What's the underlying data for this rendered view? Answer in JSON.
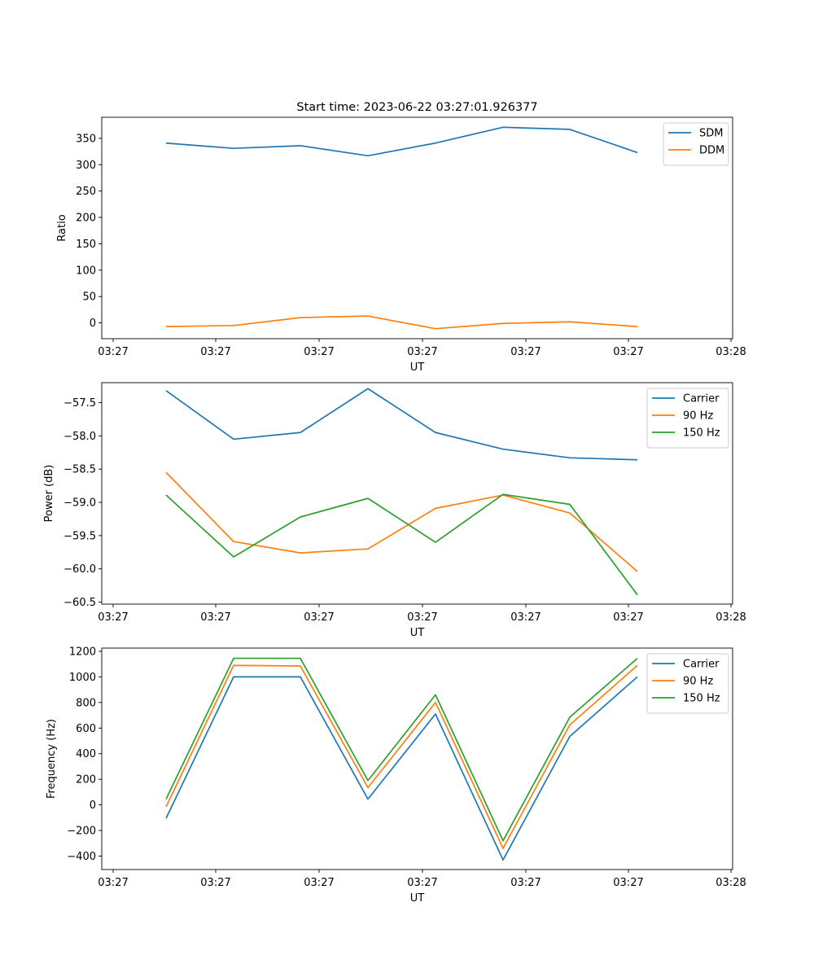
{
  "chart_data": [
    {
      "type": "line",
      "title": "Start time: 2023-06-22 03:27:01.926377",
      "xlabel": "UT",
      "ylabel": "Ratio",
      "xtick_labels": [
        "03:27",
        "03:27",
        "03:27",
        "03:27",
        "03:27",
        "03:27",
        "03:27",
        "03:28"
      ],
      "x_point_count": 8,
      "ylim": [
        -30,
        390
      ],
      "yticks": [
        0,
        50,
        100,
        150,
        200,
        250,
        300,
        350
      ],
      "ytick_labels": [
        "0",
        "50",
        "100",
        "150",
        "200",
        "250",
        "300",
        "350"
      ],
      "legend": "upper right",
      "series": [
        {
          "name": "SDM",
          "color": "#1f77b4",
          "values": [
            341,
            331,
            336,
            317,
            341,
            371,
            367,
            323
          ]
        },
        {
          "name": "DDM",
          "color": "#ff7f0e",
          "values": [
            -7,
            -5,
            10,
            13,
            -11,
            -1,
            2,
            -7
          ]
        }
      ]
    },
    {
      "type": "line",
      "title": "",
      "xlabel": "UT",
      "ylabel": "Power (dB)",
      "xtick_labels": [
        "03:27",
        "03:27",
        "03:27",
        "03:27",
        "03:27",
        "03:27",
        "03:27",
        "03:28"
      ],
      "x_point_count": 8,
      "ylim": [
        -60.53,
        -57.2
      ],
      "yticks": [
        -60.5,
        -60.0,
        -59.5,
        -59.0,
        -58.5,
        -58.0,
        -57.5
      ],
      "ytick_labels": [
        "−60.5",
        "−60.0",
        "−59.5",
        "−59.0",
        "−58.5",
        "−58.0",
        "−57.5"
      ],
      "legend": "upper right",
      "series": [
        {
          "name": "Carrier",
          "color": "#1f77b4",
          "values": [
            -57.32,
            -58.05,
            -57.95,
            -57.29,
            -57.95,
            -58.2,
            -58.33,
            -58.36
          ]
        },
        {
          "name": "90 Hz",
          "color": "#ff7f0e",
          "values": [
            -58.55,
            -59.59,
            -59.76,
            -59.7,
            -59.09,
            -58.89,
            -59.16,
            -60.04
          ]
        },
        {
          "name": "150 Hz",
          "color": "#2ca02c",
          "values": [
            -58.89,
            -59.82,
            -59.22,
            -58.94,
            -59.6,
            -58.88,
            -59.03,
            -60.39
          ]
        }
      ]
    },
    {
      "type": "line",
      "title": "",
      "xlabel": "UT",
      "ylabel": "Frequency (Hz)",
      "xtick_labels": [
        "03:27",
        "03:27",
        "03:27",
        "03:27",
        "03:27",
        "03:27",
        "03:27",
        "03:28"
      ],
      "x_point_count": 8,
      "ylim": [
        -505,
        1225
      ],
      "yticks": [
        -400,
        -200,
        0,
        200,
        400,
        600,
        800,
        1000,
        1200
      ],
      "ytick_labels": [
        "−400",
        "−200",
        "0",
        "200",
        "400",
        "600",
        "800",
        "1000",
        "1200"
      ],
      "legend": "upper right",
      "series": [
        {
          "name": "Carrier",
          "color": "#1f77b4",
          "values": [
            -105,
            1000,
            1000,
            45,
            710,
            -430,
            535,
            1000
          ]
        },
        {
          "name": "90 Hz",
          "color": "#ff7f0e",
          "values": [
            -15,
            1090,
            1085,
            135,
            800,
            -340,
            625,
            1090
          ]
        },
        {
          "name": "150 Hz",
          "color": "#2ca02c",
          "values": [
            45,
            1145,
            1145,
            190,
            860,
            -280,
            685,
            1145
          ]
        }
      ]
    }
  ]
}
